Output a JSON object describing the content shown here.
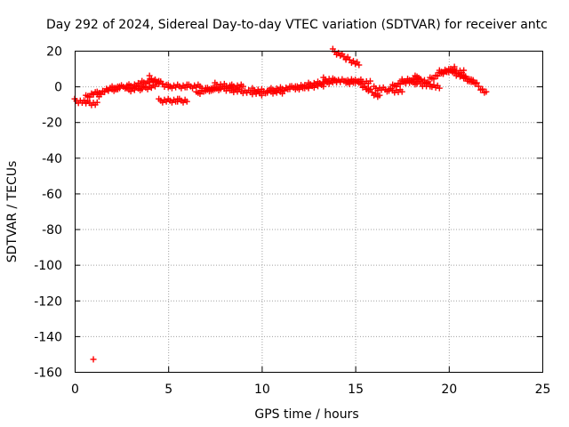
{
  "chart_data": {
    "type": "scatter",
    "title": "Day 292 of 2024, Sidereal Day-to-day VTEC variation (SDTVAR) for receiver antc",
    "xlabel": "GPS time / hours",
    "ylabel": "SDTVAR / TECUs",
    "xlim": [
      0,
      25
    ],
    "ylim": [
      -160,
      20
    ],
    "xticks": [
      "0",
      "5",
      "10",
      "15",
      "20",
      "25"
    ],
    "yticks": [
      "20",
      "0",
      "-20",
      "-40",
      "-60",
      "-80",
      "-100",
      "-120",
      "-140",
      "-160"
    ],
    "grid": true,
    "marker": "+",
    "series": [
      {
        "color": "#ff0000",
        "segments": [
          [
            [
              0.0,
              -8
            ],
            [
              0.6,
              -9
            ],
            [
              1.2,
              -10
            ]
          ],
          [
            [
              0.6,
              -6
            ],
            [
              1.0,
              -4
            ],
            [
              1.4,
              -5
            ]
          ],
          [
            [
              1.2,
              -4
            ],
            [
              1.8,
              -2
            ],
            [
              2.4,
              -1
            ]
          ],
          [
            [
              2.0,
              -1
            ],
            [
              2.8,
              0
            ],
            [
              3.5,
              1
            ]
          ],
          [
            [
              2.8,
              -2
            ],
            [
              3.6,
              -1
            ],
            [
              4.3,
              0
            ]
          ],
          [
            [
              3.6,
              2
            ],
            [
              4.2,
              3
            ],
            [
              4.7,
              2
            ]
          ],
          [
            [
              4.0,
              5
            ],
            [
              4.5,
              2
            ],
            [
              5.0,
              0
            ]
          ],
          [
            [
              4.5,
              -8
            ],
            [
              5.5,
              -8
            ],
            [
              6.0,
              -8
            ]
          ],
          [
            [
              5.0,
              0
            ],
            [
              6.0,
              0
            ],
            [
              6.8,
              0
            ]
          ],
          [
            [
              6.5,
              -4
            ],
            [
              7.0,
              -2
            ],
            [
              7.5,
              -1
            ]
          ],
          [
            [
              7.0,
              -2
            ],
            [
              7.8,
              -1
            ],
            [
              8.5,
              -2
            ]
          ],
          [
            [
              7.5,
              1
            ],
            [
              8.3,
              0
            ],
            [
              9.0,
              0
            ]
          ],
          [
            [
              8.3,
              -2
            ],
            [
              9.2,
              -3
            ],
            [
              10.0,
              -4
            ]
          ],
          [
            [
              9.5,
              -2
            ],
            [
              10.3,
              -3
            ],
            [
              11.2,
              -3
            ]
          ],
          [
            [
              10.5,
              -2
            ],
            [
              11.5,
              -1
            ],
            [
              12.3,
              0
            ]
          ],
          [
            [
              11.8,
              -1
            ],
            [
              12.5,
              0
            ],
            [
              13.3,
              1
            ]
          ],
          [
            [
              12.5,
              1
            ],
            [
              13.3,
              2
            ],
            [
              14.0,
              3
            ]
          ],
          [
            [
              13.3,
              4
            ],
            [
              14.2,
              3
            ],
            [
              15.0,
              3
            ]
          ],
          [
            [
              14.5,
              2
            ],
            [
              15.2,
              3
            ],
            [
              15.8,
              2
            ]
          ],
          [
            [
              13.8,
              20
            ],
            [
              14.5,
              16
            ],
            [
              15.2,
              12
            ]
          ],
          [
            [
              15.2,
              2
            ],
            [
              15.7,
              -2
            ],
            [
              16.3,
              -6
            ]
          ],
          [
            [
              16.0,
              -1
            ],
            [
              16.8,
              -2
            ],
            [
              17.5,
              -3
            ]
          ],
          [
            [
              17.0,
              0
            ],
            [
              17.7,
              3
            ],
            [
              18.5,
              5
            ]
          ],
          [
            [
              17.5,
              3
            ],
            [
              18.3,
              2
            ],
            [
              19.0,
              0
            ]
          ],
          [
            [
              18.2,
              5
            ],
            [
              18.8,
              2
            ],
            [
              19.5,
              -1
            ]
          ],
          [
            [
              19.0,
              4
            ],
            [
              19.7,
              8
            ],
            [
              20.3,
              10
            ]
          ],
          [
            [
              19.5,
              8
            ],
            [
              20.2,
              9
            ],
            [
              20.8,
              8
            ]
          ],
          [
            [
              20.2,
              8
            ],
            [
              20.8,
              5
            ],
            [
              21.3,
              3
            ]
          ],
          [
            [
              20.8,
              5
            ],
            [
              21.4,
              2
            ],
            [
              22.0,
              -4
            ]
          ]
        ]
      }
    ],
    "outliers": [
      [
        1.0,
        -153
      ]
    ]
  }
}
